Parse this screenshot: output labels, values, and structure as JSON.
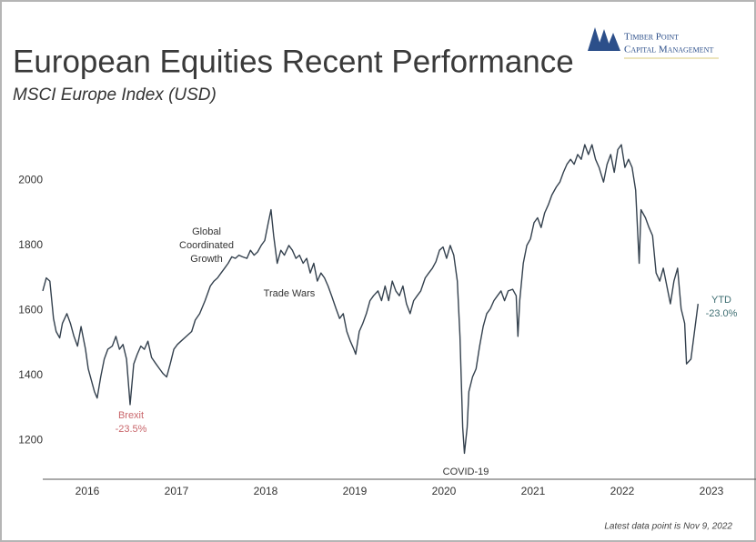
{
  "chart_data": {
    "type": "line",
    "title": "European Equities Recent Performance",
    "subtitle": "MSCI Europe Index (USD)",
    "logo": [
      "Timber Point",
      "Capital Management"
    ],
    "footnote": "Latest data point is Nov 9, 2022",
    "color": "#34414e",
    "grid": false,
    "xlim": [
      2015.5,
      2023.5
    ],
    "xticks": [
      2016,
      2017,
      2018,
      2019,
      2020,
      2021,
      2022,
      2023
    ],
    "ylim": [
      1080,
      2200
    ],
    "yticks": [
      1200,
      1400,
      1600,
      1800,
      2000
    ],
    "x": [
      2015.5,
      2015.54,
      2015.58,
      2015.62,
      2015.65,
      2015.69,
      2015.72,
      2015.77,
      2015.81,
      2015.85,
      2015.89,
      2015.93,
      2015.98,
      2016.01,
      2016.05,
      2016.08,
      2016.11,
      2016.15,
      2016.19,
      2016.23,
      2016.28,
      2016.32,
      2016.36,
      2016.4,
      2016.44,
      2016.48,
      2016.52,
      2016.56,
      2016.6,
      2016.64,
      2016.68,
      2016.72,
      2016.77,
      2016.81,
      2016.85,
      2016.89,
      2016.93,
      2016.97,
      2017.01,
      2017.05,
      2017.11,
      2017.17,
      2017.21,
      2017.26,
      2017.32,
      2017.38,
      2017.42,
      2017.46,
      2017.5,
      2017.54,
      2017.58,
      2017.62,
      2017.66,
      2017.7,
      2017.74,
      2017.79,
      2017.83,
      2017.87,
      2017.91,
      2017.95,
      2017.99,
      2018.03,
      2018.06,
      2018.09,
      2018.13,
      2018.17,
      2018.21,
      2018.26,
      2018.3,
      2018.34,
      2018.38,
      2018.42,
      2018.46,
      2018.5,
      2018.54,
      2018.58,
      2018.62,
      2018.66,
      2018.7,
      2018.74,
      2018.79,
      2018.83,
      2018.87,
      2018.91,
      2018.95,
      2018.99,
      2019.01,
      2019.05,
      2019.09,
      2019.13,
      2019.17,
      2019.21,
      2019.26,
      2019.3,
      2019.34,
      2019.38,
      2019.42,
      2019.46,
      2019.5,
      2019.54,
      2019.58,
      2019.62,
      2019.66,
      2019.7,
      2019.74,
      2019.79,
      2019.83,
      2019.87,
      2019.91,
      2019.95,
      2019.99,
      2020.03,
      2020.07,
      2020.11,
      2020.15,
      2020.18,
      2020.21,
      2020.23,
      2020.26,
      2020.28,
      2020.32,
      2020.36,
      2020.4,
      2020.44,
      2020.48,
      2020.52,
      2020.56,
      2020.6,
      2020.64,
      2020.68,
      2020.72,
      2020.77,
      2020.81,
      2020.83,
      2020.85,
      2020.89,
      2020.93,
      2020.97,
      2021.01,
      2021.05,
      2021.09,
      2021.13,
      2021.17,
      2021.21,
      2021.26,
      2021.3,
      2021.34,
      2021.38,
      2021.42,
      2021.46,
      2021.5,
      2021.54,
      2021.58,
      2021.62,
      2021.66,
      2021.7,
      2021.74,
      2021.79,
      2021.83,
      2021.87,
      2021.91,
      2021.95,
      2021.99,
      2022.03,
      2022.07,
      2022.11,
      2022.15,
      2022.19,
      2022.21,
      2022.26,
      2022.3,
      2022.34,
      2022.38,
      2022.42,
      2022.46,
      2022.5,
      2022.54,
      2022.58,
      2022.62,
      2022.66,
      2022.7,
      2022.72,
      2022.77,
      2022.81,
      2022.85
    ],
    "values": [
      1660,
      1700,
      1690,
      1575,
      1535,
      1515,
      1560,
      1590,
      1560,
      1520,
      1490,
      1550,
      1480,
      1420,
      1380,
      1350,
      1330,
      1395,
      1450,
      1480,
      1490,
      1520,
      1480,
      1495,
      1450,
      1310,
      1435,
      1465,
      1490,
      1480,
      1505,
      1455,
      1435,
      1420,
      1405,
      1395,
      1435,
      1480,
      1495,
      1505,
      1520,
      1535,
      1570,
      1590,
      1630,
      1675,
      1690,
      1700,
      1715,
      1730,
      1745,
      1765,
      1760,
      1770,
      1765,
      1760,
      1785,
      1770,
      1780,
      1800,
      1815,
      1870,
      1910,
      1830,
      1745,
      1785,
      1770,
      1800,
      1785,
      1760,
      1770,
      1745,
      1760,
      1715,
      1745,
      1690,
      1715,
      1700,
      1675,
      1645,
      1605,
      1575,
      1590,
      1535,
      1505,
      1480,
      1465,
      1535,
      1560,
      1590,
      1630,
      1645,
      1660,
      1630,
      1675,
      1630,
      1690,
      1660,
      1645,
      1675,
      1620,
      1590,
      1630,
      1645,
      1660,
      1700,
      1715,
      1730,
      1750,
      1785,
      1795,
      1760,
      1800,
      1770,
      1690,
      1520,
      1240,
      1160,
      1240,
      1350,
      1395,
      1420,
      1490,
      1550,
      1590,
      1605,
      1630,
      1645,
      1660,
      1630,
      1660,
      1665,
      1645,
      1520,
      1630,
      1745,
      1800,
      1820,
      1870,
      1885,
      1855,
      1900,
      1925,
      1955,
      1980,
      1995,
      2025,
      2050,
      2065,
      2050,
      2080,
      2065,
      2110,
      2080,
      2110,
      2065,
      2040,
      1995,
      2050,
      2080,
      2025,
      2095,
      2110,
      2040,
      2065,
      2040,
      1970,
      1745,
      1910,
      1885,
      1855,
      1830,
      1715,
      1690,
      1730,
      1675,
      1620,
      1690,
      1730,
      1605,
      1560,
      1435,
      1450,
      1535,
      1620
    ],
    "annotations": [
      {
        "lines": [
          "Global",
          "Coordinated",
          "Growth"
        ],
        "color": "#333333"
      },
      {
        "lines": [
          "Trade Wars"
        ],
        "color": "#333333"
      },
      {
        "lines": [
          "Brexit",
          "-23.5%"
        ],
        "color": "#c9666b"
      },
      {
        "lines": [
          "COVID-19"
        ],
        "color": "#333333"
      },
      {
        "lines": [
          "YTD",
          "-23.0%"
        ],
        "color": "#3f6f73"
      }
    ]
  }
}
